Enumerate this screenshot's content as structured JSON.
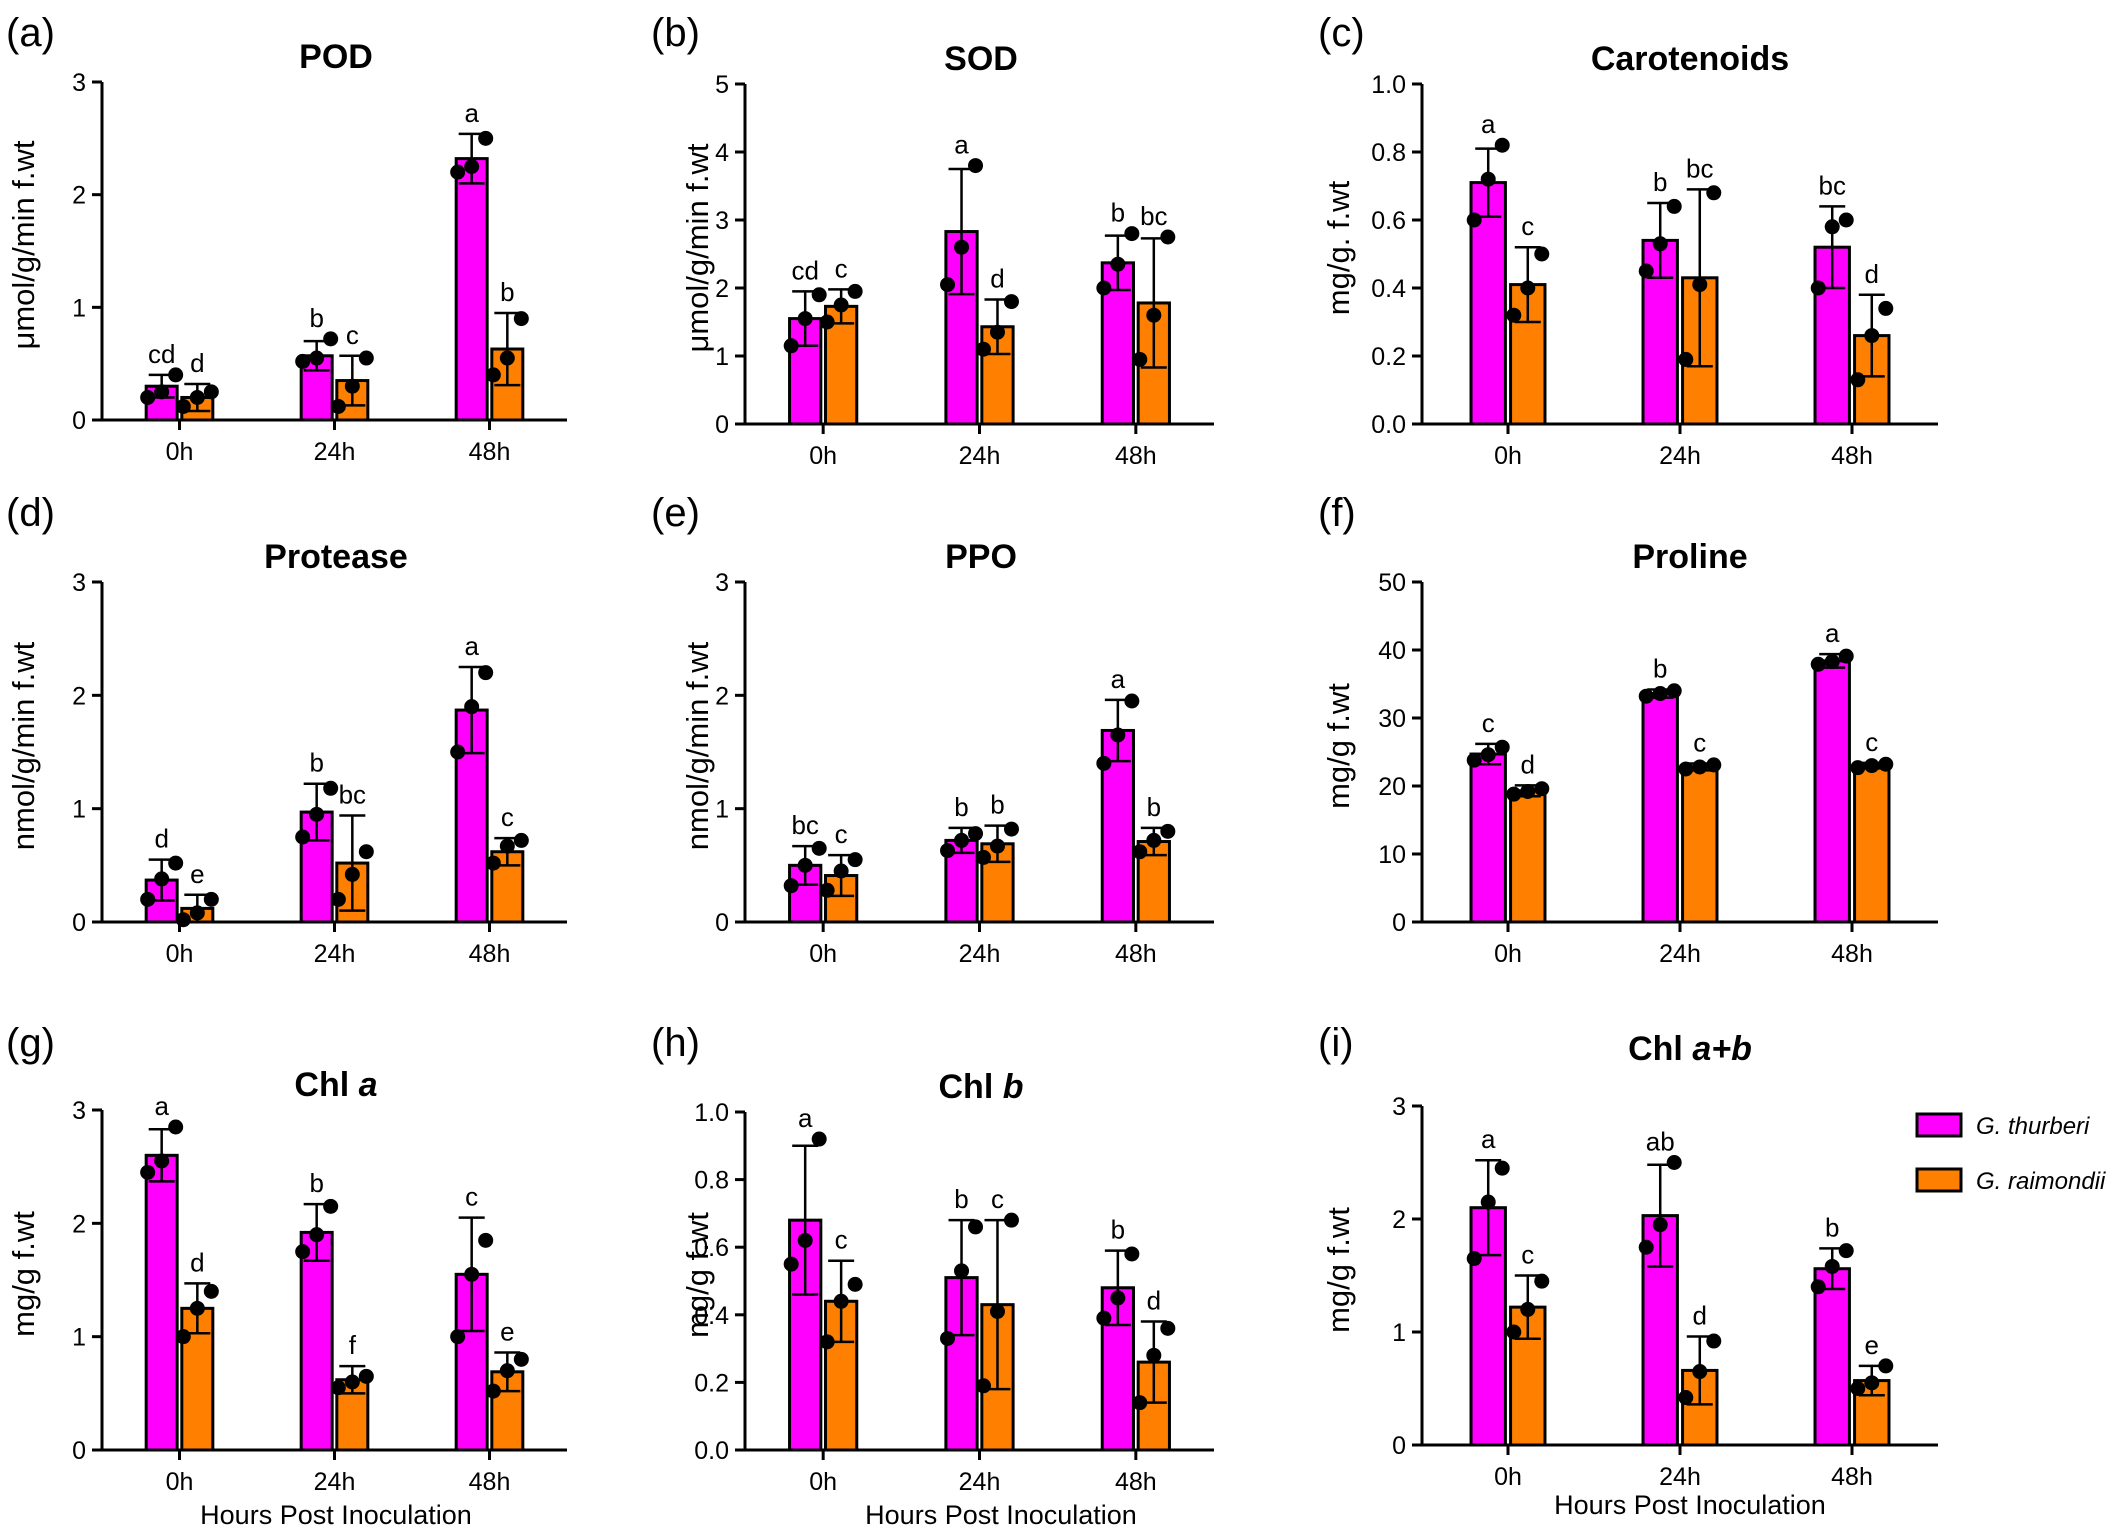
{
  "legend": [
    {
      "name": "G. thurberi",
      "color": "#ff00ff"
    },
    {
      "name": "G. raimondii",
      "color": "#ff8000"
    }
  ],
  "chart_data": [
    {
      "panel": "(a)",
      "type": "bar",
      "title": "POD",
      "ylabel": "μmol/g/min f.wt",
      "xlabel": "",
      "categories": [
        "0h",
        "24h",
        "48h"
      ],
      "ylim": [
        0,
        3
      ],
      "yticks": [
        "0",
        "1",
        "2",
        "3"
      ],
      "series": [
        {
          "name": "G. thurberi",
          "values": [
            0.3,
            0.57,
            2.32
          ],
          "errors": [
            0.1,
            0.13,
            0.22
          ],
          "letters": [
            "cd",
            "b",
            "a"
          ],
          "points": [
            [
              0.2,
              0.25,
              0.4
            ],
            [
              0.52,
              0.55,
              0.72
            ],
            [
              2.2,
              2.25,
              2.5
            ]
          ]
        },
        {
          "name": "G. raimondii",
          "values": [
            0.2,
            0.35,
            0.63
          ],
          "errors": [
            0.12,
            0.22,
            0.32
          ],
          "letters": [
            "d",
            "c",
            "b"
          ],
          "points": [
            [
              0.12,
              0.2,
              0.25
            ],
            [
              0.12,
              0.3,
              0.55
            ],
            [
              0.4,
              0.55,
              0.9
            ]
          ]
        }
      ]
    },
    {
      "panel": "(b)",
      "type": "bar",
      "title": "SOD",
      "ylabel": "μmol/g/min f.wt",
      "xlabel": "",
      "categories": [
        "0h",
        "24h",
        "48h"
      ],
      "ylim": [
        0,
        5
      ],
      "yticks": [
        "0",
        "1",
        "2",
        "3",
        "4",
        "5"
      ],
      "series": [
        {
          "name": "G. thurberi",
          "values": [
            1.55,
            2.83,
            2.37
          ],
          "errors": [
            0.4,
            0.92,
            0.4
          ],
          "letters": [
            "cd",
            "a",
            "b"
          ],
          "points": [
            [
              1.15,
              1.55,
              1.9
            ],
            [
              2.05,
              2.6,
              3.8
            ],
            [
              2.0,
              2.35,
              2.8
            ]
          ]
        },
        {
          "name": "G. raimondii",
          "values": [
            1.73,
            1.43,
            1.78
          ],
          "errors": [
            0.25,
            0.4,
            0.95
          ],
          "letters": [
            "c",
            "d",
            "bc"
          ],
          "points": [
            [
              1.5,
              1.75,
              1.95
            ],
            [
              1.1,
              1.35,
              1.8
            ],
            [
              0.95,
              1.6,
              2.75
            ]
          ]
        }
      ]
    },
    {
      "panel": "(c)",
      "type": "bar",
      "title": "Carotenoids",
      "ylabel": "mg/g. f.wt",
      "xlabel": "",
      "categories": [
        "0h",
        "24h",
        "48h"
      ],
      "ylim": [
        0,
        1.0
      ],
      "yticks": [
        "0.0",
        "0.2",
        "0.4",
        "0.6",
        "0.8",
        "1.0"
      ],
      "series": [
        {
          "name": "G. thurberi",
          "values": [
            0.71,
            0.54,
            0.52
          ],
          "errors": [
            0.1,
            0.11,
            0.12
          ],
          "letters": [
            "a",
            "b",
            "bc"
          ],
          "points": [
            [
              0.6,
              0.72,
              0.82
            ],
            [
              0.45,
              0.53,
              0.64
            ],
            [
              0.4,
              0.58,
              0.6
            ]
          ]
        },
        {
          "name": "G. raimondii",
          "values": [
            0.41,
            0.43,
            0.26
          ],
          "errors": [
            0.11,
            0.26,
            0.12
          ],
          "letters": [
            "c",
            "bc",
            "d"
          ],
          "points": [
            [
              0.32,
              0.4,
              0.5
            ],
            [
              0.19,
              0.41,
              0.68
            ],
            [
              0.13,
              0.26,
              0.34
            ]
          ]
        }
      ]
    },
    {
      "panel": "(d)",
      "type": "bar",
      "title": "Protease",
      "ylabel": "nmol/g/min f.wt",
      "xlabel": "",
      "categories": [
        "0h",
        "24h",
        "48h"
      ],
      "ylim": [
        0,
        3
      ],
      "yticks": [
        "0",
        "1",
        "2",
        "3"
      ],
      "series": [
        {
          "name": "G. thurberi",
          "values": [
            0.37,
            0.97,
            1.87
          ],
          "errors": [
            0.18,
            0.25,
            0.38
          ],
          "letters": [
            "d",
            "b",
            "a"
          ],
          "points": [
            [
              0.2,
              0.38,
              0.52
            ],
            [
              0.75,
              0.95,
              1.18
            ],
            [
              1.5,
              1.9,
              2.2
            ]
          ]
        },
        {
          "name": "G. raimondii",
          "values": [
            0.12,
            0.52,
            0.62
          ],
          "errors": [
            0.12,
            0.42,
            0.12
          ],
          "letters": [
            "e",
            "bc",
            "c"
          ],
          "points": [
            [
              0.02,
              0.08,
              0.2
            ],
            [
              0.2,
              0.42,
              0.62
            ],
            [
              0.52,
              0.67,
              0.72
            ]
          ]
        }
      ]
    },
    {
      "panel": "(e)",
      "type": "bar",
      "title": "PPO",
      "ylabel": "nmol/g/min f.wt",
      "xlabel": "",
      "categories": [
        "0h",
        "24h",
        "48h"
      ],
      "ylim": [
        0,
        3
      ],
      "yticks": [
        "0",
        "1",
        "2",
        "3"
      ],
      "series": [
        {
          "name": "G. thurberi",
          "values": [
            0.5,
            0.72,
            1.69
          ],
          "errors": [
            0.17,
            0.11,
            0.27
          ],
          "letters": [
            "bc",
            "b",
            "a"
          ],
          "points": [
            [
              0.32,
              0.5,
              0.65
            ],
            [
              0.63,
              0.72,
              0.78
            ],
            [
              1.4,
              1.65,
              1.95
            ]
          ]
        },
        {
          "name": "G. raimondii",
          "values": [
            0.41,
            0.69,
            0.71
          ],
          "errors": [
            0.18,
            0.16,
            0.12
          ],
          "letters": [
            "c",
            "b",
            "b"
          ],
          "points": [
            [
              0.28,
              0.45,
              0.55
            ],
            [
              0.57,
              0.67,
              0.82
            ],
            [
              0.62,
              0.72,
              0.8
            ]
          ]
        }
      ]
    },
    {
      "panel": "(f)",
      "type": "bar",
      "title": "Proline",
      "ylabel": "mg/g f.wt",
      "xlabel": "",
      "categories": [
        "0h",
        "24h",
        "48h"
      ],
      "ylim": [
        0,
        50
      ],
      "yticks": [
        "0",
        "10",
        "20",
        "30",
        "40",
        "50"
      ],
      "series": [
        {
          "name": "G. thurberi",
          "values": [
            24.7,
            33.6,
            38.4
          ],
          "errors": [
            1.5,
            0.6,
            1.0
          ],
          "letters": [
            "c",
            "b",
            "a"
          ],
          "points": [
            [
              23.8,
              24.6,
              25.7
            ],
            [
              33.2,
              33.6,
              34.0
            ],
            [
              37.9,
              38.3,
              39.1
            ]
          ]
        },
        {
          "name": "G. raimondii",
          "values": [
            19.3,
            22.8,
            23.0
          ],
          "errors": [
            0.8,
            0.5,
            0.4
          ],
          "letters": [
            "d",
            "c",
            "c"
          ],
          "points": [
            [
              18.8,
              19.2,
              19.6
            ],
            [
              22.5,
              22.8,
              23.1
            ],
            [
              22.7,
              23.0,
              23.2
            ]
          ]
        }
      ]
    },
    {
      "panel": "(g)",
      "type": "bar",
      "title": "Chl a",
      "ylabel": "mg/g f.wt",
      "xlabel": "Hours Post Inoculation",
      "categories": [
        "0h",
        "24h",
        "48h"
      ],
      "ylim": [
        0,
        3
      ],
      "yticks": [
        "0",
        "1",
        "2",
        "3"
      ],
      "series": [
        {
          "name": "G. thurberi",
          "values": [
            2.6,
            1.92,
            1.55
          ],
          "errors": [
            0.23,
            0.25,
            0.5
          ],
          "letters": [
            "a",
            "b",
            "c"
          ],
          "points": [
            [
              2.45,
              2.55,
              2.85
            ],
            [
              1.75,
              1.9,
              2.15
            ],
            [
              1.0,
              1.55,
              1.85
            ]
          ]
        },
        {
          "name": "G. raimondii",
          "values": [
            1.25,
            0.62,
            0.69
          ],
          "errors": [
            0.22,
            0.12,
            0.17
          ],
          "letters": [
            "d",
            "f",
            "e"
          ],
          "points": [
            [
              1.0,
              1.25,
              1.4
            ],
            [
              0.55,
              0.6,
              0.65
            ],
            [
              0.52,
              0.7,
              0.8
            ]
          ]
        }
      ]
    },
    {
      "panel": "(h)",
      "type": "bar",
      "title": "Chl b",
      "ylabel": "mg/g f.wt",
      "xlabel": "Hours Post Inoculation",
      "categories": [
        "0h",
        "24h",
        "48h"
      ],
      "ylim": [
        0,
        1.0
      ],
      "yticks": [
        "0.0",
        "0.2",
        "0.4",
        "0.6",
        "0.8",
        "1.0"
      ],
      "series": [
        {
          "name": "G. thurberi",
          "values": [
            0.68,
            0.51,
            0.48
          ],
          "errors": [
            0.22,
            0.17,
            0.11
          ],
          "letters": [
            "a",
            "b",
            "b"
          ],
          "points": [
            [
              0.55,
              0.62,
              0.92
            ],
            [
              0.33,
              0.53,
              0.66
            ],
            [
              0.39,
              0.45,
              0.58
            ]
          ]
        },
        {
          "name": "G. raimondii",
          "values": [
            0.44,
            0.43,
            0.26
          ],
          "errors": [
            0.12,
            0.25,
            0.12
          ],
          "letters": [
            "c",
            "c",
            "d"
          ],
          "points": [
            [
              0.32,
              0.44,
              0.49
            ],
            [
              0.19,
              0.41,
              0.68
            ],
            [
              0.14,
              0.28,
              0.36
            ]
          ]
        }
      ]
    },
    {
      "panel": "(i)",
      "type": "bar",
      "title": "Chl a+b",
      "ylabel": "mg/g f.wt",
      "xlabel": "Hours Post Inoculation",
      "categories": [
        "0h",
        "24h",
        "48h"
      ],
      "ylim": [
        0,
        3
      ],
      "yticks": [
        "0",
        "1",
        "2",
        "3"
      ],
      "series": [
        {
          "name": "G. thurberi",
          "values": [
            2.1,
            2.03,
            1.56
          ],
          "errors": [
            0.42,
            0.45,
            0.18
          ],
          "letters": [
            "a",
            "ab",
            "b"
          ],
          "points": [
            [
              1.65,
              2.15,
              2.45
            ],
            [
              1.75,
              1.95,
              2.5
            ],
            [
              1.4,
              1.58,
              1.72
            ]
          ]
        },
        {
          "name": "G. raimondii",
          "values": [
            1.22,
            0.66,
            0.57
          ],
          "errors": [
            0.28,
            0.3,
            0.13
          ],
          "letters": [
            "c",
            "d",
            "e"
          ],
          "points": [
            [
              1.0,
              1.2,
              1.45
            ],
            [
              0.42,
              0.65,
              0.92
            ],
            [
              0.5,
              0.55,
              0.7
            ]
          ]
        }
      ]
    }
  ]
}
